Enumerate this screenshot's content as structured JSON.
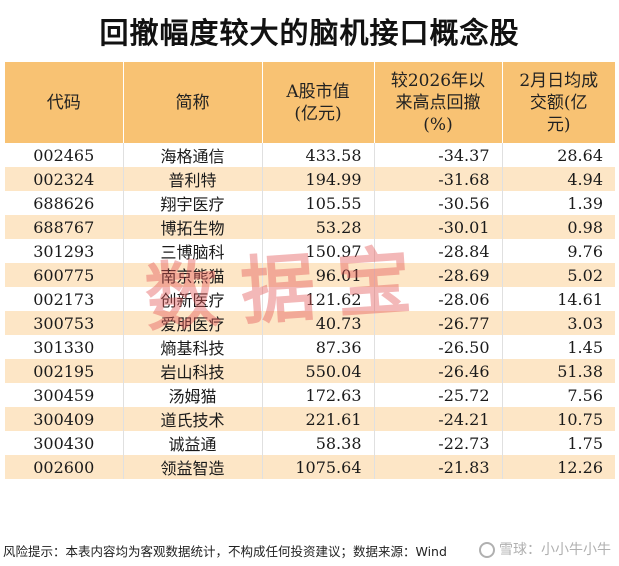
{
  "title": "回撤幅度较大的脑机接口概念股",
  "table": {
    "headers": {
      "code": "代码",
      "name": "简称",
      "mktcap_l1": "A股市值",
      "mktcap_l2": "(亿元)",
      "drawdown_l1": "较2026年以",
      "drawdown_l2": "来高点回撤",
      "drawdown_l3": "(%)",
      "turnover_l1": "2月日均成",
      "turnover_l2": "交额(亿",
      "turnover_l3": "元)"
    },
    "rows": [
      {
        "code": "002465",
        "name": "海格通信",
        "mktcap": "433.58",
        "drawdown": "-34.37",
        "turnover": "28.64"
      },
      {
        "code": "002324",
        "name": "普利特",
        "mktcap": "194.99",
        "drawdown": "-31.68",
        "turnover": "4.94"
      },
      {
        "code": "688626",
        "name": "翔宇医疗",
        "mktcap": "105.55",
        "drawdown": "-30.56",
        "turnover": "1.39"
      },
      {
        "code": "688767",
        "name": "博拓生物",
        "mktcap": "53.28",
        "drawdown": "-30.01",
        "turnover": "0.98"
      },
      {
        "code": "301293",
        "name": "三博脑科",
        "mktcap": "150.97",
        "drawdown": "-28.84",
        "turnover": "9.76"
      },
      {
        "code": "600775",
        "name": "南京熊猫",
        "mktcap": "96.01",
        "drawdown": "-28.69",
        "turnover": "5.02"
      },
      {
        "code": "002173",
        "name": "创新医疗",
        "mktcap": "121.62",
        "drawdown": "-28.06",
        "turnover": "14.61"
      },
      {
        "code": "300753",
        "name": "爱朋医疗",
        "mktcap": "40.73",
        "drawdown": "-26.77",
        "turnover": "3.03"
      },
      {
        "code": "301330",
        "name": "熵基科技",
        "mktcap": "87.36",
        "drawdown": "-26.50",
        "turnover": "1.45"
      },
      {
        "code": "002195",
        "name": "岩山科技",
        "mktcap": "550.04",
        "drawdown": "-26.46",
        "turnover": "51.38"
      },
      {
        "code": "300459",
        "name": "汤姆猫",
        "mktcap": "172.63",
        "drawdown": "-25.72",
        "turnover": "7.56"
      },
      {
        "code": "300409",
        "name": "道氏技术",
        "mktcap": "221.61",
        "drawdown": "-24.21",
        "turnover": "10.75"
      },
      {
        "code": "300430",
        "name": "诚益通",
        "mktcap": "58.38",
        "drawdown": "-22.73",
        "turnover": "1.75"
      },
      {
        "code": "002600",
        "name": "领益智造",
        "mktcap": "1075.64",
        "drawdown": "-21.83",
        "turnover": "12.26"
      }
    ]
  },
  "watermark": "数据宝",
  "footer": "风险提示：本表内容均为客观数据统计，不构成任何投资建议；数据来源：Wind",
  "corner_mark": "雪球：小小牛小牛",
  "colors": {
    "header_bg": "#f8c273",
    "stripe_bg": "#fde6c6",
    "watermark": "#e25656"
  }
}
